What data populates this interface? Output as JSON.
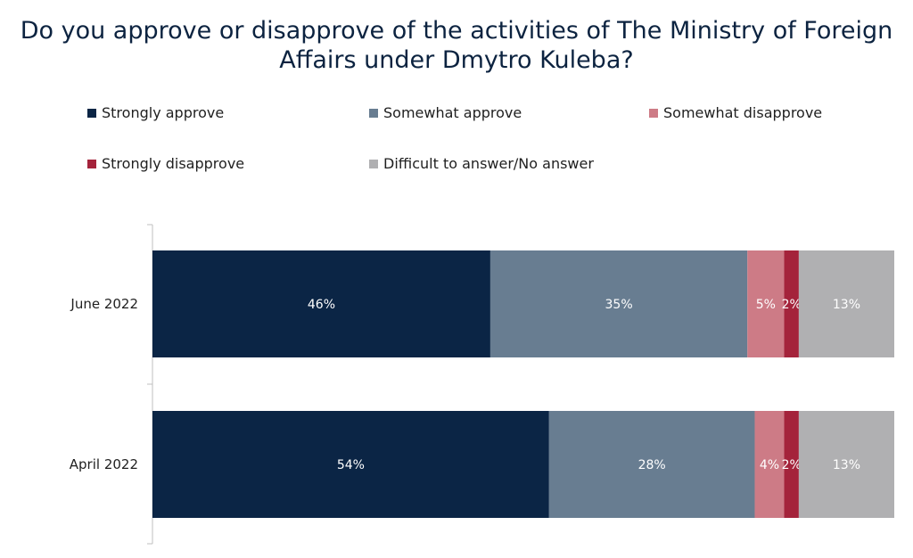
{
  "chart_data": {
    "type": "bar",
    "orientation": "horizontal",
    "stacked": true,
    "title_lines": [
      "Do you approve or disapprove of the activities of The Ministry of Foreign",
      "Affairs under Dmytro Kuleba?"
    ],
    "categories": [
      "June 2022",
      "April 2022"
    ],
    "series": [
      {
        "name": "Strongly approve",
        "color": "#0b2545",
        "values": [
          46,
          54
        ],
        "labels": [
          "46%",
          "54%"
        ]
      },
      {
        "name": "Somewhat approve",
        "color": "#687d91",
        "values": [
          35,
          28
        ],
        "labels": [
          "35%",
          "28%"
        ]
      },
      {
        "name": "Somewhat disapprove",
        "color": "#cd7b86",
        "values": [
          5,
          4
        ],
        "labels": [
          "5%",
          "4%"
        ]
      },
      {
        "name": "Strongly disapprove",
        "color": "#a4233b",
        "values": [
          2,
          2
        ],
        "labels": [
          "2%",
          "2%"
        ]
      },
      {
        "name": "Difficult to answer/No answer",
        "color": "#b0b0b2",
        "values": [
          13,
          13
        ],
        "labels": [
          "13%",
          "13%"
        ]
      }
    ],
    "xlim": [
      0,
      101
    ],
    "legend_position": "top"
  }
}
